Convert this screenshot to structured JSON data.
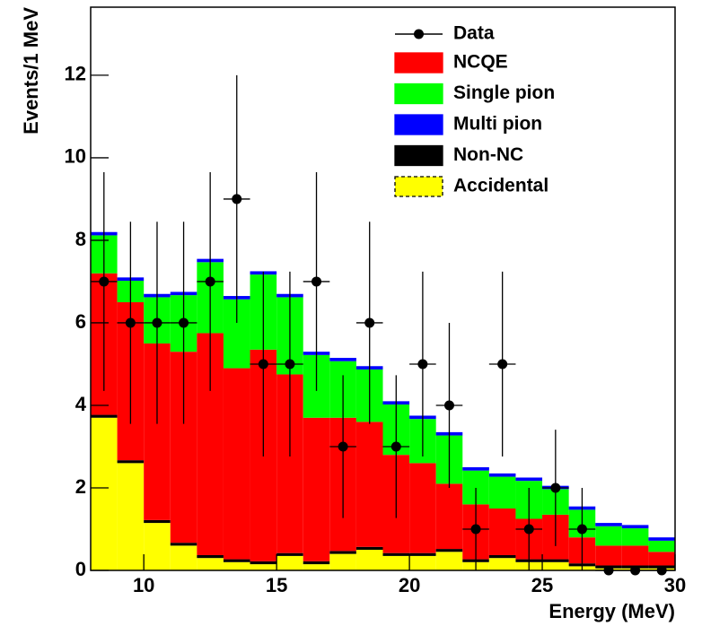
{
  "chart_data": {
    "type": "histogram",
    "xlabel": "Energy (MeV)",
    "ylabel": "Events/1 MeV",
    "bins": [
      8,
      9,
      10,
      11,
      12,
      13,
      14,
      15,
      16,
      17,
      18,
      19,
      20,
      21,
      22,
      23,
      24,
      25,
      26,
      27,
      28,
      29,
      30
    ],
    "xlim": [
      8,
      30
    ],
    "ylim": [
      0,
      13.65
    ],
    "xticks": [
      10,
      15,
      20,
      25,
      30
    ],
    "yticks": [
      0,
      2,
      4,
      6,
      8,
      10,
      12
    ],
    "stacked": true,
    "series": [
      {
        "name": "NCQE",
        "color": "#ff0000",
        "values": [
          3.43,
          3.83,
          4.28,
          4.63,
          5.38,
          4.63,
          5.13,
          4.33,
          3.48,
          3.23,
          3.03,
          2.38,
          2.18,
          1.58,
          1.33,
          1.13,
          0.98,
          1.08,
          0.63,
          0.48,
          0.48,
          0.33
        ]
      },
      {
        "name": "Single pion",
        "color": "#00ff00",
        "values": [
          0.92,
          0.52,
          1.12,
          1.37,
          1.72,
          1.67,
          1.82,
          1.87,
          1.52,
          1.37,
          1.27,
          1.22,
          1.07,
          1.17,
          0.82,
          0.77,
          0.92,
          0.62,
          0.67,
          0.47,
          0.42,
          0.27
        ]
      },
      {
        "name": "Multi pion",
        "color": "#0000ff",
        "values": [
          0.08,
          0.08,
          0.08,
          0.08,
          0.08,
          0.08,
          0.08,
          0.08,
          0.08,
          0.08,
          0.08,
          0.08,
          0.08,
          0.08,
          0.08,
          0.08,
          0.08,
          0.08,
          0.08,
          0.08,
          0.08,
          0.08
        ]
      },
      {
        "name": "Non-NC",
        "color": "#000000",
        "values": [
          0.07,
          0.07,
          0.07,
          0.07,
          0.07,
          0.07,
          0.07,
          0.07,
          0.07,
          0.07,
          0.07,
          0.07,
          0.07,
          0.07,
          0.07,
          0.07,
          0.07,
          0.07,
          0.07,
          0.07,
          0.07,
          0.07
        ]
      },
      {
        "name": "Accidental",
        "color": "#ffff00",
        "values": [
          3.7,
          2.6,
          1.15,
          0.6,
          0.3,
          0.2,
          0.15,
          0.35,
          0.15,
          0.4,
          0.5,
          0.35,
          0.35,
          0.45,
          0.2,
          0.3,
          0.2,
          0.2,
          0.1,
          0.05,
          0.05,
          0.05
        ]
      }
    ],
    "data_series": {
      "name": "Data",
      "color": "#000000",
      "values": [
        7,
        6,
        6,
        6,
        7,
        9,
        5,
        5,
        7,
        3,
        6,
        3,
        5,
        4,
        1,
        5,
        1,
        2,
        1,
        0,
        0,
        0
      ],
      "errors": [
        2.65,
        2.45,
        2.45,
        2.45,
        2.65,
        3,
        2.24,
        2.24,
        2.65,
        1.73,
        2.45,
        1.73,
        2.24,
        2,
        1,
        2.24,
        1,
        1.41,
        1,
        0,
        0,
        0
      ]
    }
  }
}
